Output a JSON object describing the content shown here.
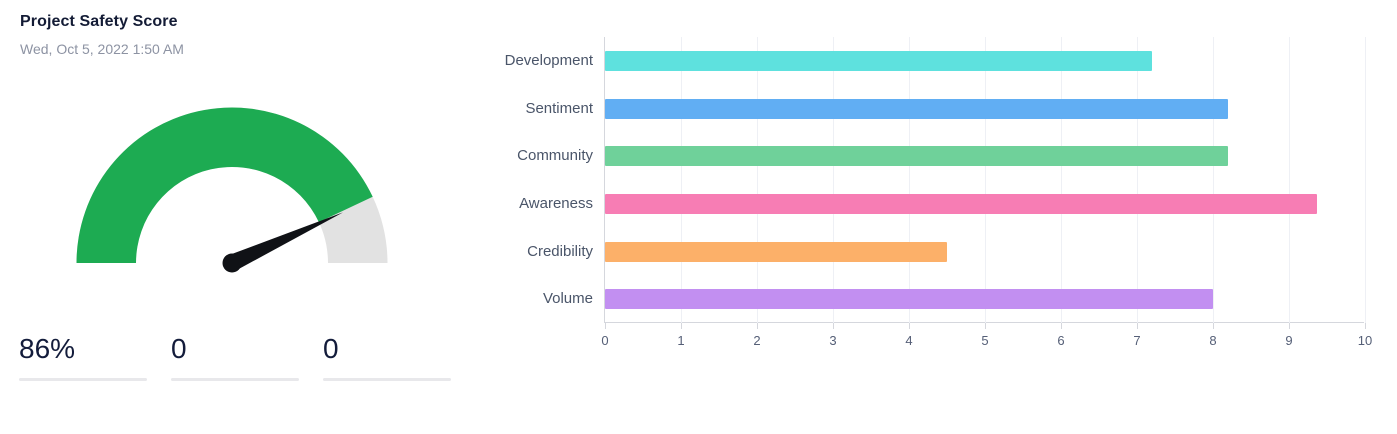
{
  "card": {
    "title": "Project Safety Score",
    "subtitle": "Wed, Oct 5, 2022 1:50 AM",
    "stats": [
      {
        "value": "86%"
      },
      {
        "value": "0"
      },
      {
        "value": "0"
      }
    ]
  },
  "chart_data": [
    {
      "type": "gauge",
      "title": "Project Safety Score",
      "subtitle": "Wed, Oct 5, 2022 1:50 AM",
      "percent": 86,
      "display_value": "86%",
      "secondary_values": [
        "0",
        "0"
      ],
      "range": [
        0,
        100
      ],
      "filled_color": "#1dab52",
      "track_color": "#e2e2e2",
      "needle_color": "#101216"
    },
    {
      "type": "bar",
      "orientation": "horizontal",
      "title": "",
      "xlabel": "",
      "ylabel": "",
      "categories": [
        "Development",
        "Sentiment",
        "Community",
        "Awareness",
        "Credibility",
        "Volume"
      ],
      "values": [
        7.2,
        8.2,
        8.2,
        9.37,
        4.5,
        8.0
      ],
      "colors": [
        "#5ee1de",
        "#61aef3",
        "#6fd19a",
        "#f77db4",
        "#fcb069",
        "#c28ff1"
      ],
      "xlim": [
        0,
        10
      ],
      "xticks": [
        0,
        1,
        2,
        3,
        4,
        5,
        6,
        7,
        8,
        9,
        10
      ],
      "grid": true,
      "legend_position": "none",
      "axis_color": "#d5d7dd",
      "grid_color": "#eef0f5"
    }
  ]
}
